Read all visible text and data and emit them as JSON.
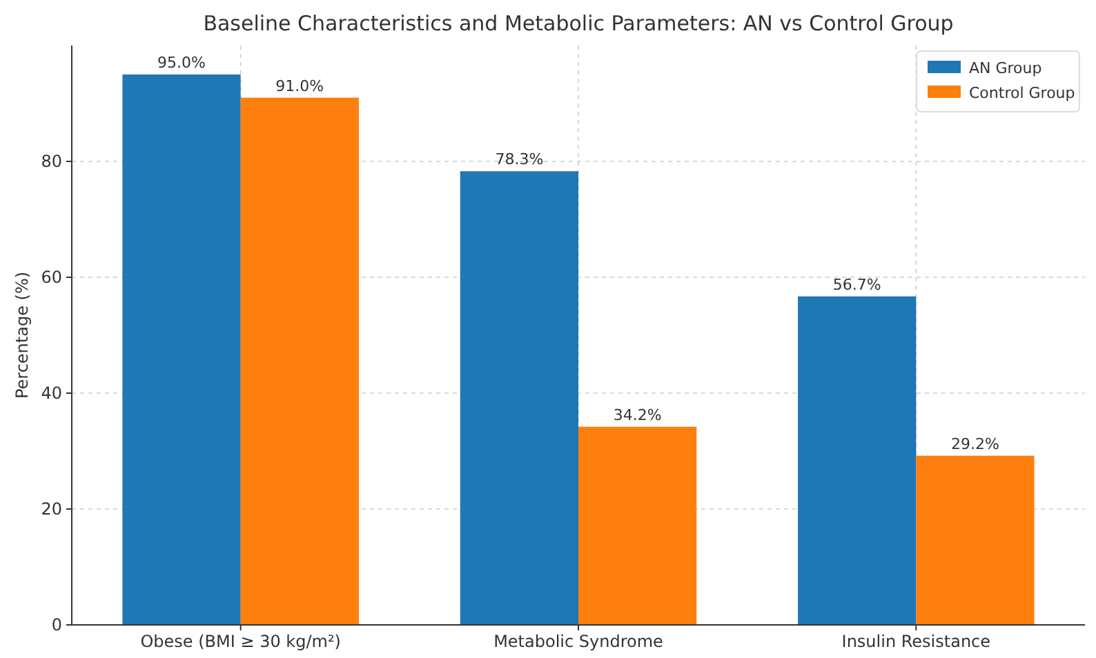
{
  "chart_data": {
    "type": "bar",
    "title": "Baseline Characteristics and Metabolic Parameters: AN vs Control Group",
    "ylabel": "Percentage (%)",
    "categories": [
      "Obese (BMI ≥ 30 kg/m²)",
      "Metabolic Syndrome",
      "Insulin Resistance"
    ],
    "series": [
      {
        "name": "AN Group",
        "color": "#1f77b4",
        "values": [
          95.0,
          78.3,
          56.7
        ],
        "value_labels": [
          "95.0%",
          "78.3%",
          "56.7%"
        ]
      },
      {
        "name": "Control Group",
        "color": "#ff7f0e",
        "values": [
          91.0,
          34.2,
          29.2
        ],
        "value_labels": [
          "91.0%",
          "34.2%",
          "29.2%"
        ]
      }
    ],
    "ylim": [
      0,
      100
    ],
    "yticks": [
      0,
      20,
      40,
      60,
      80
    ],
    "grid": true,
    "legend": "top right"
  }
}
